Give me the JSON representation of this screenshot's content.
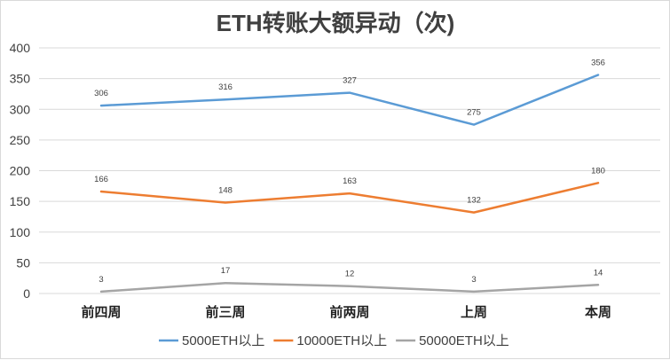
{
  "chart_data": {
    "type": "line",
    "title": "ETH转账大额异动（次)",
    "categories": [
      "前四周",
      "前三周",
      "前两周",
      "上周",
      "本周"
    ],
    "ylim": [
      0,
      400
    ],
    "yticks": [
      0,
      50,
      100,
      150,
      200,
      250,
      300,
      350,
      400
    ],
    "grid": true,
    "legend_position": "bottom",
    "series": [
      {
        "name": "5000ETH以上",
        "color": "#5b9bd5",
        "values": [
          306,
          316,
          327,
          275,
          356
        ]
      },
      {
        "name": "10000ETH以上",
        "color": "#ed7d31",
        "values": [
          166,
          148,
          163,
          132,
          180
        ]
      },
      {
        "name": "50000ETH以上",
        "color": "#a5a5a5",
        "values": [
          3,
          17,
          12,
          3,
          14
        ]
      }
    ]
  }
}
